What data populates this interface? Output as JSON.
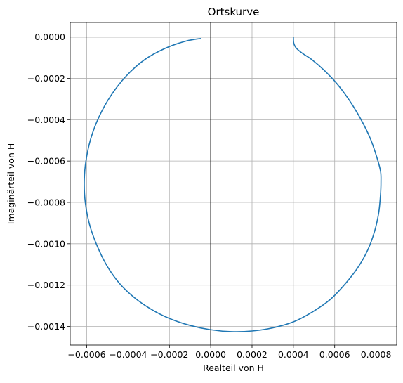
{
  "chart_data": {
    "type": "line",
    "title": "Ortskurve",
    "xlabel": "Realteil von H",
    "ylabel": "Imaginärteil von H",
    "xlim": [
      -0.00068,
      0.0009
    ],
    "ylim": [
      -0.00149,
      7e-05
    ],
    "grid": true,
    "xticks": [
      -0.0006,
      -0.0004,
      -0.0002,
      0.0,
      0.0002,
      0.0004,
      0.0006,
      0.0008
    ],
    "xtick_labels": [
      "−0.0006",
      "−0.0004",
      "−0.0002",
      "0.0000",
      "0.0002",
      "0.0004",
      "0.0006",
      "0.0008"
    ],
    "yticks": [
      0.0,
      -0.0002,
      -0.0004,
      -0.0006,
      -0.0008,
      -0.001,
      -0.0012,
      -0.0014
    ],
    "ytick_labels": [
      "0.0000",
      "−0.0002",
      "−0.0004",
      "−0.0006",
      "−0.0008",
      "−0.0010",
      "−0.0012",
      "−0.0014"
    ],
    "reference_lines": {
      "x": 0.0,
      "y": 0.0,
      "color": "#000000"
    },
    "series": [
      {
        "color": "#1f77b4",
        "x": [
          0.0004,
          0.000402,
          0.000415,
          0.000445,
          0.00049,
          0.000548,
          0.00061,
          0.00067,
          0.000725,
          0.000772,
          0.000805,
          0.000822,
          0.000824,
          0.000822,
          0.000813,
          0.000793,
          0.00076,
          0.000712,
          0.00065,
          0.000578,
          0.000492,
          0.0004,
          0.0003,
          0.0002,
          0.0001,
          0.0,
          -0.0001,
          -0.000196,
          -0.000286,
          -0.00037,
          -0.000443,
          -0.000503,
          -0.000552,
          -0.000587,
          -0.000607,
          -0.000612,
          -0.000604,
          -0.00058,
          -0.00054,
          -0.000484,
          -0.00041,
          -0.00032,
          -0.00022,
          -0.00012,
          -4.5e-05
        ],
        "y": [
          0.0,
          -3e-05,
          -5.5e-05,
          -8e-05,
          -0.00011,
          -0.00016,
          -0.000225,
          -0.000305,
          -0.000395,
          -0.00049,
          -0.000585,
          -0.00065,
          -0.0007,
          -0.00076,
          -0.00085,
          -0.00094,
          -0.00103,
          -0.001115,
          -0.001195,
          -0.00127,
          -0.00133,
          -0.001378,
          -0.001407,
          -0.001422,
          -0.001425,
          -0.001416,
          -0.001395,
          -0.001363,
          -0.001318,
          -0.00126,
          -0.00119,
          -0.001105,
          -0.001005,
          -0.000905,
          -0.0008,
          -0.0007,
          -0.0006,
          -0.00049,
          -0.000385,
          -0.000285,
          -0.00019,
          -0.00011,
          -5.5e-05,
          -2e-05,
          -7e-06
        ]
      }
    ]
  }
}
